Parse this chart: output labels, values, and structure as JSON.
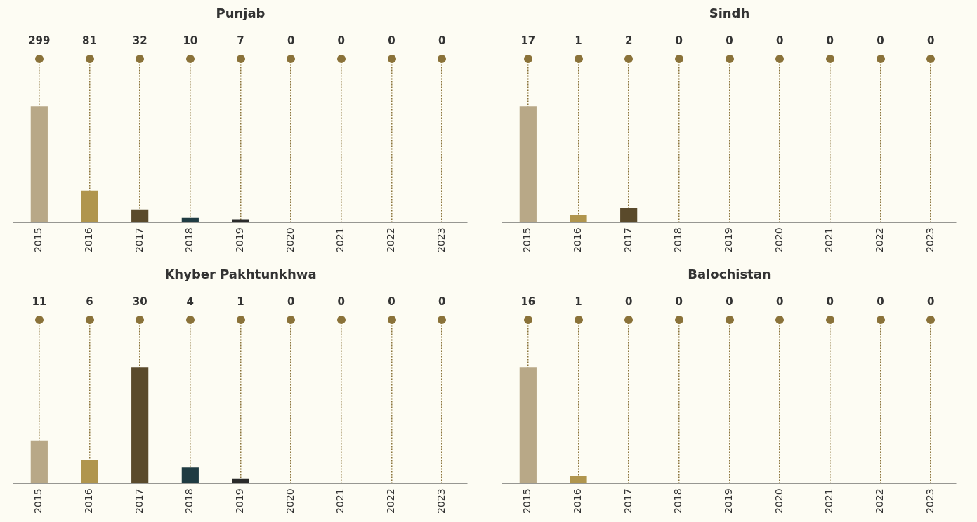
{
  "chart_data": [
    {
      "type": "bar",
      "title": "Punjab",
      "categories": [
        "2015",
        "2016",
        "2017",
        "2018",
        "2019",
        "2020",
        "2021",
        "2022",
        "2023"
      ],
      "values": [
        299,
        81,
        32,
        10,
        7,
        0,
        0,
        0,
        0
      ],
      "colors": [
        "#b8a887",
        "#b0954d",
        "#5a4a2b",
        "#1f3b42",
        "#2a2a2a",
        "#2a2a2a",
        "#2a2a2a",
        "#2a2a2a",
        "#2a2a2a"
      ],
      "data_labels": true,
      "grid": "x",
      "legend": false,
      "tick_labels": "x"
    },
    {
      "type": "bar",
      "title": "Sindh",
      "categories": [
        "2015",
        "2016",
        "2017",
        "2018",
        "2019",
        "2020",
        "2021",
        "2022",
        "2023"
      ],
      "values": [
        17,
        1,
        2,
        0,
        0,
        0,
        0,
        0,
        0
      ],
      "colors": [
        "#b8a887",
        "#b0954d",
        "#5a4a2b",
        "#1f3b42",
        "#2a2a2a",
        "#2a2a2a",
        "#2a2a2a",
        "#2a2a2a",
        "#2a2a2a"
      ],
      "data_labels": true,
      "grid": "x",
      "legend": false,
      "tick_labels": "x"
    },
    {
      "type": "bar",
      "title": "Khyber Pakhtunkhwa",
      "categories": [
        "2015",
        "2016",
        "2017",
        "2018",
        "2019",
        "2020",
        "2021",
        "2022",
        "2023"
      ],
      "values": [
        11,
        6,
        30,
        4,
        1,
        0,
        0,
        0,
        0
      ],
      "colors": [
        "#b8a887",
        "#b0954d",
        "#5a4a2b",
        "#1f3b42",
        "#2a2a2a",
        "#2a2a2a",
        "#2a2a2a",
        "#2a2a2a",
        "#2a2a2a"
      ],
      "data_labels": true,
      "grid": "x",
      "legend": false,
      "tick_labels": "x"
    },
    {
      "type": "bar",
      "title": "Balochistan",
      "categories": [
        "2015",
        "2016",
        "2017",
        "2018",
        "2019",
        "2020",
        "2021",
        "2022",
        "2023"
      ],
      "values": [
        16,
        1,
        0,
        0,
        0,
        0,
        0,
        0,
        0
      ],
      "colors": [
        "#b8a887",
        "#b0954d",
        "#5a4a2b",
        "#1f3b42",
        "#2a2a2a",
        "#2a2a2a",
        "#2a2a2a",
        "#2a2a2a",
        "#2a2a2a"
      ],
      "data_labels": true,
      "grid": "x",
      "legend": false,
      "tick_labels": "x"
    }
  ]
}
